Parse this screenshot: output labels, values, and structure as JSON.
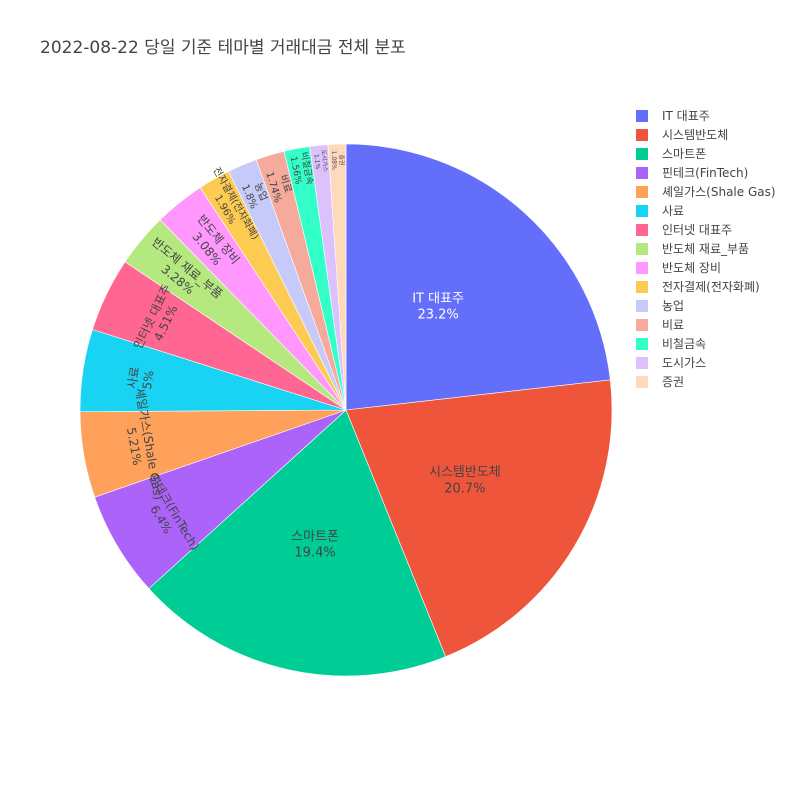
{
  "chart_data": {
    "type": "pie",
    "title": "2022-08-22 당일 기준 테마별 거래대금 전체 분포",
    "sort": "descending",
    "direction": "clockwise",
    "start_angle": "12 o'clock",
    "legend": "right",
    "slices": [
      {
        "label": "IT 대표주",
        "value": 23.2,
        "text": "23.2%",
        "color": "#636efa",
        "text_color": "#ffffff"
      },
      {
        "label": "시스템반도체",
        "value": 20.7,
        "text": "20.7%",
        "color": "#EF553B",
        "text_color": "#444444"
      },
      {
        "label": "스마트폰",
        "value": 19.4,
        "text": "19.4%",
        "color": "#00cc96",
        "text_color": "#444444"
      },
      {
        "label": "핀테크(FinTech)",
        "value": 6.4,
        "text": "6.4%",
        "color": "#ab63fa",
        "text_color": "#444444"
      },
      {
        "label": "셰일가스(Shale Gas)",
        "value": 5.21,
        "text": "5.21%",
        "color": "#FFA15A",
        "text_color": "#444444"
      },
      {
        "label": "사료",
        "value": 5.0,
        "text": "5%",
        "color": "#19d3f3",
        "text_color": "#444444"
      },
      {
        "label": "인터넷 대표주",
        "value": 4.51,
        "text": "4.51%",
        "color": "#FF6692",
        "text_color": "#444444"
      },
      {
        "label": "반도체 재료_부품",
        "value": 3.28,
        "text": "3.28%",
        "color": "#B6E880",
        "text_color": "#444444"
      },
      {
        "label": "반도체 장비",
        "value": 3.08,
        "text": "3.08%",
        "color": "#FF97FF",
        "text_color": "#444444"
      },
      {
        "label": "전자결제(전자화폐)",
        "value": 1.96,
        "text": "1.96%",
        "color": "#FECB52",
        "text_color": "#444444"
      },
      {
        "label": "농업",
        "value": 1.8,
        "text": "1.8%",
        "color": "#c6caf8",
        "text_color": "#444444"
      },
      {
        "label": "비료",
        "value": 1.74,
        "text": "1.74%",
        "color": "#f5aa9b",
        "text_color": "#444444"
      },
      {
        "label": "비철금속",
        "value": 1.56,
        "text": "1.56%",
        "color": "#33ffc8",
        "text_color": "#444444"
      },
      {
        "label": "도시가스",
        "value": 1.1,
        "text": "1.1%",
        "color": "#ddc1fd",
        "text_color": "#444444"
      },
      {
        "label": "증권",
        "value": 1.08,
        "text": "1.08%",
        "color": "#fed9bc",
        "text_color": "#444444"
      }
    ]
  }
}
